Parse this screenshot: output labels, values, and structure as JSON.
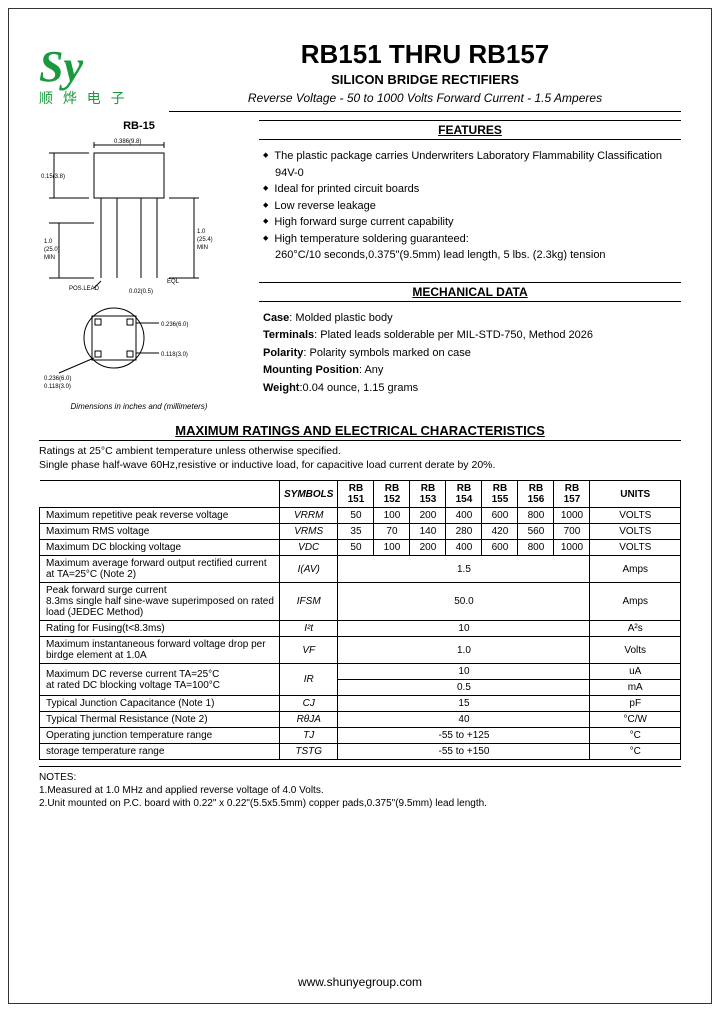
{
  "logo": {
    "text": "Sy",
    "cn": "顺 烨 电 子"
  },
  "title": "RB151 THRU RB157",
  "subtitle": "SILICON BRIDGE RECTIFIERS",
  "specline": "Reverse Voltage - 50 to 1000 Volts    Forward Current - 1.5 Amperes",
  "pkg_label": "RB-15",
  "dim_note": "Dimensions in inches and (millimeters)",
  "features_head": "FEATURES",
  "features": [
    "The plastic package carries Underwriters Laboratory Flammability Classification 94V-0",
    "Ideal for printed circuit boards",
    "Low reverse leakage",
    "High forward surge current capability",
    "High temperature soldering guaranteed:"
  ],
  "feature_sub": "260°C/10 seconds,0.375\"(9.5mm) lead length, 5 lbs. (2.3kg) tension",
  "mech_head": "MECHANICAL DATA",
  "mech": {
    "case": "Case",
    "case_v": "Molded plastic body",
    "term": "Terminals",
    "term_v": "Plated leads solderable per MIL-STD-750, Method 2026",
    "pol": "Polarity",
    "pol_v": "Polarity symbols marked on case",
    "mnt": "Mounting Position",
    "mnt_v": "Any",
    "wt": "Weight",
    "wt_v": "0.04 ounce, 1.15 grams"
  },
  "ratings_head": "MAXIMUM RATINGS AND ELECTRICAL CHARACTERISTICS",
  "ratings_note1": "Ratings at 25°C ambient temperature unless otherwise specified.",
  "ratings_note2": "Single phase half-wave 60Hz,resistive or inductive load, for capacitive load current derate by 20%.",
  "table": {
    "head_sym": "SYMBOLS",
    "models": [
      "RB\n151",
      "RB\n152",
      "RB\n153",
      "RB\n154",
      "RB\n155",
      "RB\n156",
      "RB\n157"
    ],
    "units_head": "UNITS",
    "rows": [
      {
        "p": "Maximum repetitive peak reverse voltage",
        "s": "VRRM",
        "v": [
          "50",
          "100",
          "200",
          "400",
          "600",
          "800",
          "1000"
        ],
        "u": "VOLTS"
      },
      {
        "p": "Maximum RMS voltage",
        "s": "VRMS",
        "v": [
          "35",
          "70",
          "140",
          "280",
          "420",
          "560",
          "700"
        ],
        "u": "VOLTS"
      },
      {
        "p": "Maximum DC blocking voltage",
        "s": "VDC",
        "v": [
          "50",
          "100",
          "200",
          "400",
          "600",
          "800",
          "1000"
        ],
        "u": "VOLTS"
      },
      {
        "p": "Maximum average forward output rectified current at TA=25°C (Note 2)",
        "s": "I(AV)",
        "span": "1.5",
        "u": "Amps"
      },
      {
        "p": "Peak forward surge current\n8.3ms single half sine-wave superimposed on rated load (JEDEC Method)",
        "s": "IFSM",
        "span": "50.0",
        "u": "Amps"
      },
      {
        "p": "Rating for Fusing(t<8.3ms)",
        "s": "I²t",
        "span": "10",
        "u": "A²s"
      },
      {
        "p": "Maximum instantaneous forward voltage drop per birdge element at 1.0A",
        "s": "VF",
        "span": "1.0",
        "u": "Volts"
      }
    ],
    "ir_p": "Maximum DC reverse current       TA=25°C\nat rated DC blocking voltage      TA=100°C",
    "ir_s": "IR",
    "ir_v1": "10",
    "ir_u1": "uA",
    "ir_v2": "0.5",
    "ir_u2": "mA",
    "rows2": [
      {
        "p": "Typical Junction Capacitance (Note 1)",
        "s": "CJ",
        "span": "15",
        "u": "pF"
      },
      {
        "p": "Typical Thermal Resistance (Note 2)",
        "s": "RθJA",
        "span": "40",
        "u": "°C/W"
      },
      {
        "p": "Operating junction temperature range",
        "s": "TJ",
        "span": "-55 to +125",
        "u": "°C"
      },
      {
        "p": "storage temperature range",
        "s": "TSTG",
        "span": "-55 to +150",
        "u": "°C"
      }
    ]
  },
  "notes_head": "NOTES:",
  "note1": "1.Measured at 1.0 MHz and applied reverse voltage of 4.0 Volts.",
  "note2": "2.Unit mounted on P.C. board with 0.22\" x 0.22\"(5.5x5.5mm) copper pads,0.375\"(9.5mm) lead length.",
  "url": "www.shunyegroup.com"
}
